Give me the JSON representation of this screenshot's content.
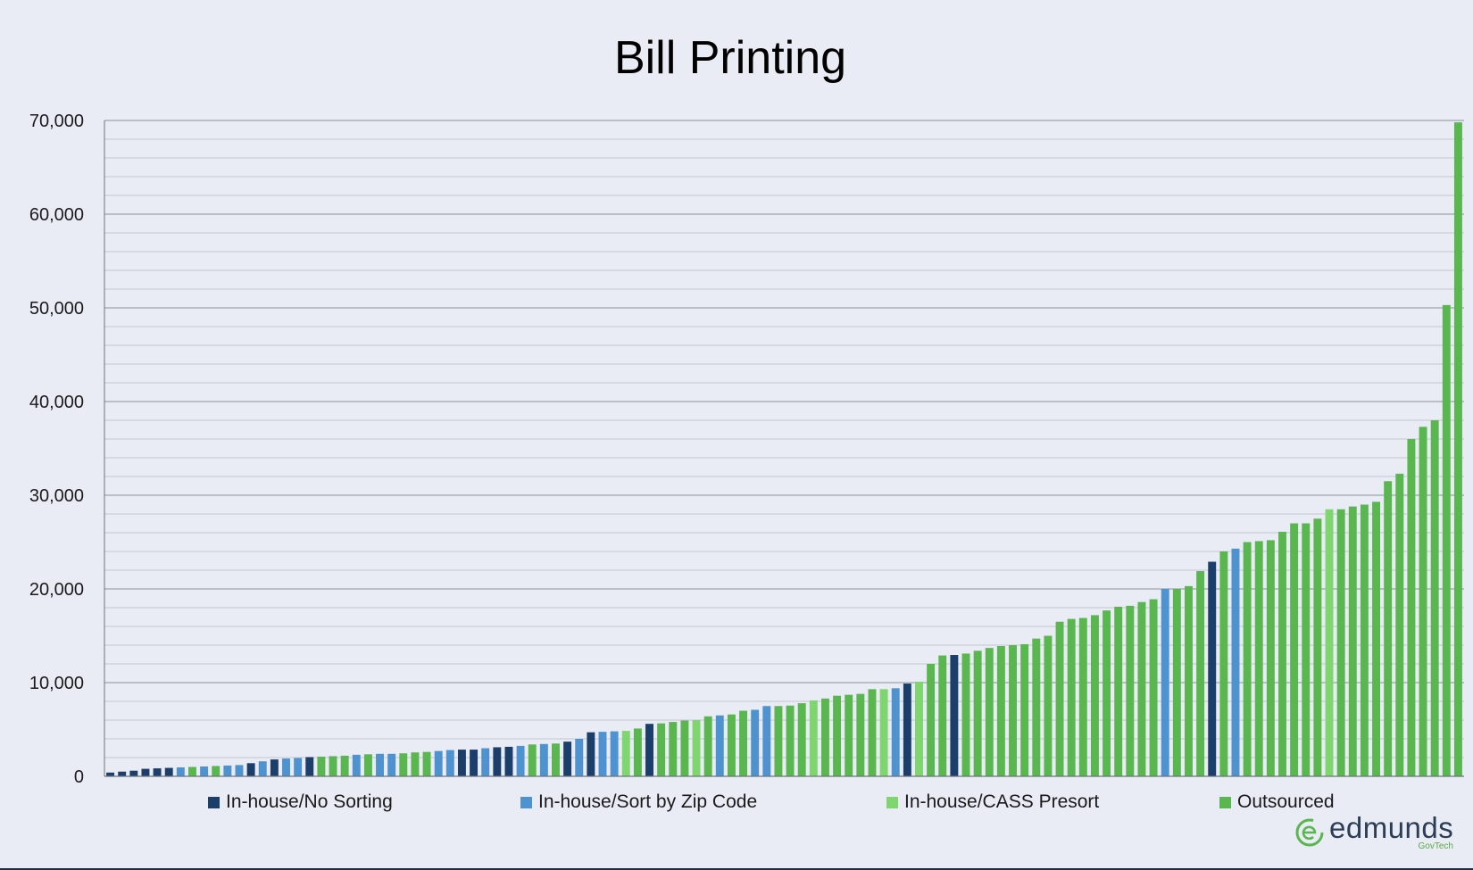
{
  "chart_data": {
    "type": "bar",
    "title": "Bill Printing",
    "xlabel": "",
    "ylabel": "",
    "ylim": [
      0,
      70000
    ],
    "yticks": [
      0,
      10000,
      20000,
      30000,
      40000,
      50000,
      60000,
      70000
    ],
    "ytick_labels": [
      "0",
      "10,000",
      "20,000",
      "30,000",
      "40,000",
      "50,000",
      "60,000",
      "70,000"
    ],
    "grid": true,
    "legend_position": "bottom",
    "series": [
      {
        "name": "In-house/No Sorting",
        "color": "#1c3e6a"
      },
      {
        "name": "In-house/Sort by Zip Code",
        "color": "#4e93d0"
      },
      {
        "name": "In-house/CASS Presort",
        "color": "#7fd66f"
      },
      {
        "name": "Outsourced",
        "color": "#5ab64e"
      }
    ],
    "bars": [
      {
        "series": 0,
        "value": 400
      },
      {
        "series": 0,
        "value": 500
      },
      {
        "series": 0,
        "value": 600
      },
      {
        "series": 0,
        "value": 800
      },
      {
        "series": 0,
        "value": 850
      },
      {
        "series": 0,
        "value": 900
      },
      {
        "series": 1,
        "value": 950
      },
      {
        "series": 3,
        "value": 1000
      },
      {
        "series": 1,
        "value": 1050
      },
      {
        "series": 3,
        "value": 1100
      },
      {
        "series": 1,
        "value": 1150
      },
      {
        "series": 1,
        "value": 1200
      },
      {
        "series": 0,
        "value": 1400
      },
      {
        "series": 1,
        "value": 1600
      },
      {
        "series": 0,
        "value": 1800
      },
      {
        "series": 1,
        "value": 1900
      },
      {
        "series": 1,
        "value": 1950
      },
      {
        "series": 0,
        "value": 2050
      },
      {
        "series": 3,
        "value": 2100
      },
      {
        "series": 3,
        "value": 2150
      },
      {
        "series": 3,
        "value": 2200
      },
      {
        "series": 1,
        "value": 2300
      },
      {
        "series": 3,
        "value": 2350
      },
      {
        "series": 1,
        "value": 2400
      },
      {
        "series": 1,
        "value": 2400
      },
      {
        "series": 3,
        "value": 2450
      },
      {
        "series": 3,
        "value": 2550
      },
      {
        "series": 3,
        "value": 2600
      },
      {
        "series": 1,
        "value": 2700
      },
      {
        "series": 1,
        "value": 2800
      },
      {
        "series": 0,
        "value": 2850
      },
      {
        "series": 0,
        "value": 2850
      },
      {
        "series": 1,
        "value": 3000
      },
      {
        "series": 0,
        "value": 3100
      },
      {
        "series": 0,
        "value": 3150
      },
      {
        "series": 1,
        "value": 3250
      },
      {
        "series": 3,
        "value": 3400
      },
      {
        "series": 1,
        "value": 3450
      },
      {
        "series": 3,
        "value": 3500
      },
      {
        "series": 0,
        "value": 3700
      },
      {
        "series": 1,
        "value": 4000
      },
      {
        "series": 0,
        "value": 4700
      },
      {
        "series": 1,
        "value": 4750
      },
      {
        "series": 1,
        "value": 4800
      },
      {
        "series": 2,
        "value": 4850
      },
      {
        "series": 3,
        "value": 5100
      },
      {
        "series": 0,
        "value": 5600
      },
      {
        "series": 3,
        "value": 5650
      },
      {
        "series": 3,
        "value": 5800
      },
      {
        "series": 3,
        "value": 5950
      },
      {
        "series": 2,
        "value": 6000
      },
      {
        "series": 3,
        "value": 6400
      },
      {
        "series": 1,
        "value": 6500
      },
      {
        "series": 3,
        "value": 6600
      },
      {
        "series": 3,
        "value": 7000
      },
      {
        "series": 1,
        "value": 7100
      },
      {
        "series": 1,
        "value": 7500
      },
      {
        "series": 3,
        "value": 7500
      },
      {
        "series": 3,
        "value": 7550
      },
      {
        "series": 3,
        "value": 7800
      },
      {
        "series": 2,
        "value": 8100
      },
      {
        "series": 3,
        "value": 8300
      },
      {
        "series": 3,
        "value": 8600
      },
      {
        "series": 3,
        "value": 8700
      },
      {
        "series": 3,
        "value": 8800
      },
      {
        "series": 3,
        "value": 9300
      },
      {
        "series": 2,
        "value": 9300
      },
      {
        "series": 1,
        "value": 9400
      },
      {
        "series": 0,
        "value": 9900
      },
      {
        "series": 2,
        "value": 10100
      },
      {
        "series": 3,
        "value": 12000
      },
      {
        "series": 3,
        "value": 12900
      },
      {
        "series": 0,
        "value": 12950
      },
      {
        "series": 3,
        "value": 13100
      },
      {
        "series": 3,
        "value": 13400
      },
      {
        "series": 3,
        "value": 13700
      },
      {
        "series": 3,
        "value": 13900
      },
      {
        "series": 3,
        "value": 14000
      },
      {
        "series": 3,
        "value": 14100
      },
      {
        "series": 3,
        "value": 14700
      },
      {
        "series": 3,
        "value": 15000
      },
      {
        "series": 3,
        "value": 16500
      },
      {
        "series": 3,
        "value": 16800
      },
      {
        "series": 3,
        "value": 16900
      },
      {
        "series": 3,
        "value": 17200
      },
      {
        "series": 3,
        "value": 17700
      },
      {
        "series": 3,
        "value": 18100
      },
      {
        "series": 3,
        "value": 18200
      },
      {
        "series": 3,
        "value": 18600
      },
      {
        "series": 3,
        "value": 18900
      },
      {
        "series": 1,
        "value": 20000
      },
      {
        "series": 3,
        "value": 20000
      },
      {
        "series": 3,
        "value": 20300
      },
      {
        "series": 3,
        "value": 21900
      },
      {
        "series": 0,
        "value": 22900
      },
      {
        "series": 3,
        "value": 24000
      },
      {
        "series": 1,
        "value": 24300
      },
      {
        "series": 3,
        "value": 25000
      },
      {
        "series": 3,
        "value": 25100
      },
      {
        "series": 3,
        "value": 25200
      },
      {
        "series": 3,
        "value": 26100
      },
      {
        "series": 3,
        "value": 27000
      },
      {
        "series": 3,
        "value": 27000
      },
      {
        "series": 3,
        "value": 27500
      },
      {
        "series": 2,
        "value": 28500
      },
      {
        "series": 3,
        "value": 28500
      },
      {
        "series": 3,
        "value": 28800
      },
      {
        "series": 3,
        "value": 29000
      },
      {
        "series": 3,
        "value": 29300
      },
      {
        "series": 3,
        "value": 31500
      },
      {
        "series": 3,
        "value": 32300
      },
      {
        "series": 3,
        "value": 36000
      },
      {
        "series": 3,
        "value": 37300
      },
      {
        "series": 3,
        "value": 38000
      },
      {
        "series": 3,
        "value": 50300
      },
      {
        "series": 3,
        "value": 69800
      }
    ]
  },
  "logo": {
    "text": "edmunds",
    "sub": "GovTech"
  }
}
